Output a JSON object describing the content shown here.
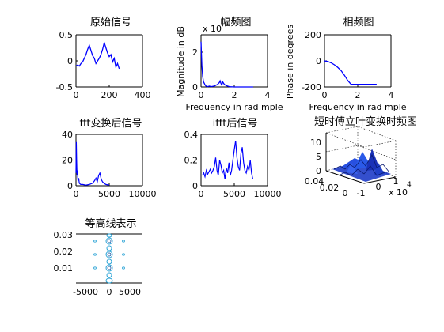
{
  "colors": {
    "line": "#0000ff",
    "axis": "#000000",
    "background": "#ffffff",
    "contour": "#2aa3d6",
    "surface": "#1e3cc8"
  },
  "chart_data": [
    {
      "type": "line",
      "title": "原始信号",
      "xlabel": "",
      "ylabel": "",
      "xlim": [
        0,
        400
      ],
      "ylim": [
        -0.5,
        0.5
      ],
      "xticks": [
        0,
        200,
        400
      ],
      "yticks": [
        -0.5,
        0,
        0.5
      ],
      "x": [
        0,
        10,
        20,
        30,
        40,
        50,
        60,
        70,
        80,
        90,
        100,
        110,
        120,
        130,
        140,
        150,
        160,
        170,
        180,
        190,
        200,
        210,
        220,
        230,
        240,
        250,
        260
      ],
      "y": [
        -0.1,
        -0.08,
        -0.1,
        -0.05,
        -0.02,
        0.05,
        0.12,
        0.22,
        0.3,
        0.2,
        0.1,
        0.05,
        -0.05,
        0.0,
        0.05,
        0.12,
        0.22,
        0.35,
        0.25,
        0.15,
        0.08,
        0.12,
        -0.02,
        0.05,
        -0.12,
        -0.05,
        -0.15
      ]
    },
    {
      "type": "line",
      "title": "幅频图",
      "xlabel": "Frequency in rad mple",
      "ylabel": "Magnitude in dB",
      "exponent_label": "x 10",
      "xlim": [
        0,
        4
      ],
      "ylim": [
        0,
        3
      ],
      "xticks": [
        0,
        2,
        4
      ],
      "yticks": [
        0,
        2
      ],
      "x": [
        0,
        0.05,
        0.1,
        0.15,
        0.2,
        0.25,
        0.3,
        0.4,
        0.5,
        0.6,
        0.8,
        1.0,
        1.1,
        1.15,
        1.2,
        1.25,
        1.3,
        1.4,
        1.5,
        1.7,
        2.0,
        2.5,
        3.0,
        3.14
      ],
      "y": [
        2.6,
        1.2,
        0.6,
        0.3,
        0.2,
        0.1,
        0.05,
        0.02,
        0.05,
        0.02,
        0.05,
        0.15,
        0.25,
        0.35,
        0.2,
        0.1,
        0.3,
        0.15,
        0.08,
        0.02,
        0.0,
        0.0,
        0.0,
        0.0
      ]
    },
    {
      "type": "line",
      "title": "相频图",
      "xlabel": "Frequency in rad mple",
      "ylabel": "Phase in degrees",
      "xlim": [
        0,
        4
      ],
      "ylim": [
        -200,
        200
      ],
      "xticks": [
        0,
        2,
        4
      ],
      "yticks": [
        -200,
        0,
        200
      ],
      "x": [
        0,
        0.2,
        0.4,
        0.6,
        0.8,
        1.0,
        1.2,
        1.4,
        1.6,
        1.8,
        2.0,
        2.5,
        3.0,
        3.14
      ],
      "y": [
        0,
        -5,
        -15,
        -30,
        -50,
        -75,
        -110,
        -150,
        -180,
        -180,
        -180,
        -180,
        -180,
        -180
      ]
    },
    {
      "type": "line",
      "title": "fft变换后信号",
      "xlabel": "",
      "ylabel": "",
      "xlim": [
        0,
        10000
      ],
      "ylim": [
        0,
        40
      ],
      "xticks": [
        0,
        5000,
        10000
      ],
      "yticks": [
        0,
        20,
        40
      ],
      "x": [
        0,
        50,
        100,
        150,
        200,
        300,
        400,
        500,
        700,
        1000,
        1500,
        2000,
        2500,
        2800,
        3000,
        3200,
        3400,
        3600,
        3800,
        4000,
        4200,
        4500,
        5000
      ],
      "y": [
        10,
        34,
        20,
        8,
        12,
        4,
        6,
        2,
        1,
        1,
        0.5,
        1,
        2,
        4,
        6,
        3,
        8,
        10,
        5,
        3,
        2,
        1,
        0.5
      ]
    },
    {
      "type": "line",
      "title": "ifft后信号",
      "xlabel": "",
      "ylabel": "",
      "xlim": [
        0,
        10000
      ],
      "ylim": [
        0,
        0.4
      ],
      "xticks": [
        0,
        5000,
        10000
      ],
      "yticks": [
        0,
        0.2,
        0.4
      ],
      "x": [
        200,
        400,
        600,
        800,
        1000,
        1200,
        1400,
        1600,
        1800,
        2000,
        2200,
        2400,
        2600,
        2800,
        3000,
        3200,
        3400,
        3600,
        3800,
        4000,
        4200,
        4400,
        4600,
        4800,
        5000,
        5200,
        5400,
        5600,
        5800,
        6000,
        6200,
        6400,
        6600,
        6800,
        7000,
        7200,
        7400,
        7600,
        7800
      ],
      "y": [
        0.08,
        0.1,
        0.07,
        0.12,
        0.09,
        0.11,
        0.13,
        0.1,
        0.12,
        0.15,
        0.22,
        0.12,
        0.08,
        0.2,
        0.16,
        0.1,
        0.12,
        0.05,
        0.14,
        0.1,
        0.18,
        0.08,
        0.12,
        0.2,
        0.28,
        0.35,
        0.22,
        0.15,
        0.12,
        0.25,
        0.3,
        0.18,
        0.12,
        0.1,
        0.15,
        0.12,
        0.2,
        0.1,
        0.05
      ]
    },
    {
      "type": "surface",
      "title": "短时傅立叶变换时频图",
      "exponent_label": "x 10",
      "exponent_power": "4",
      "zlim": [
        0,
        10
      ],
      "zticks": [
        0,
        5,
        10
      ],
      "yticks": [
        0.04,
        0.02,
        0
      ],
      "xticks": [
        -1,
        0,
        1
      ]
    },
    {
      "type": "contour",
      "title": "等高线表示",
      "xlim": [
        -7500,
        7500
      ],
      "ylim": [
        0,
        0.033
      ],
      "xticks": [
        -5000,
        0,
        5000
      ],
      "yticks": [
        0.01,
        0.02,
        0.03
      ]
    }
  ]
}
